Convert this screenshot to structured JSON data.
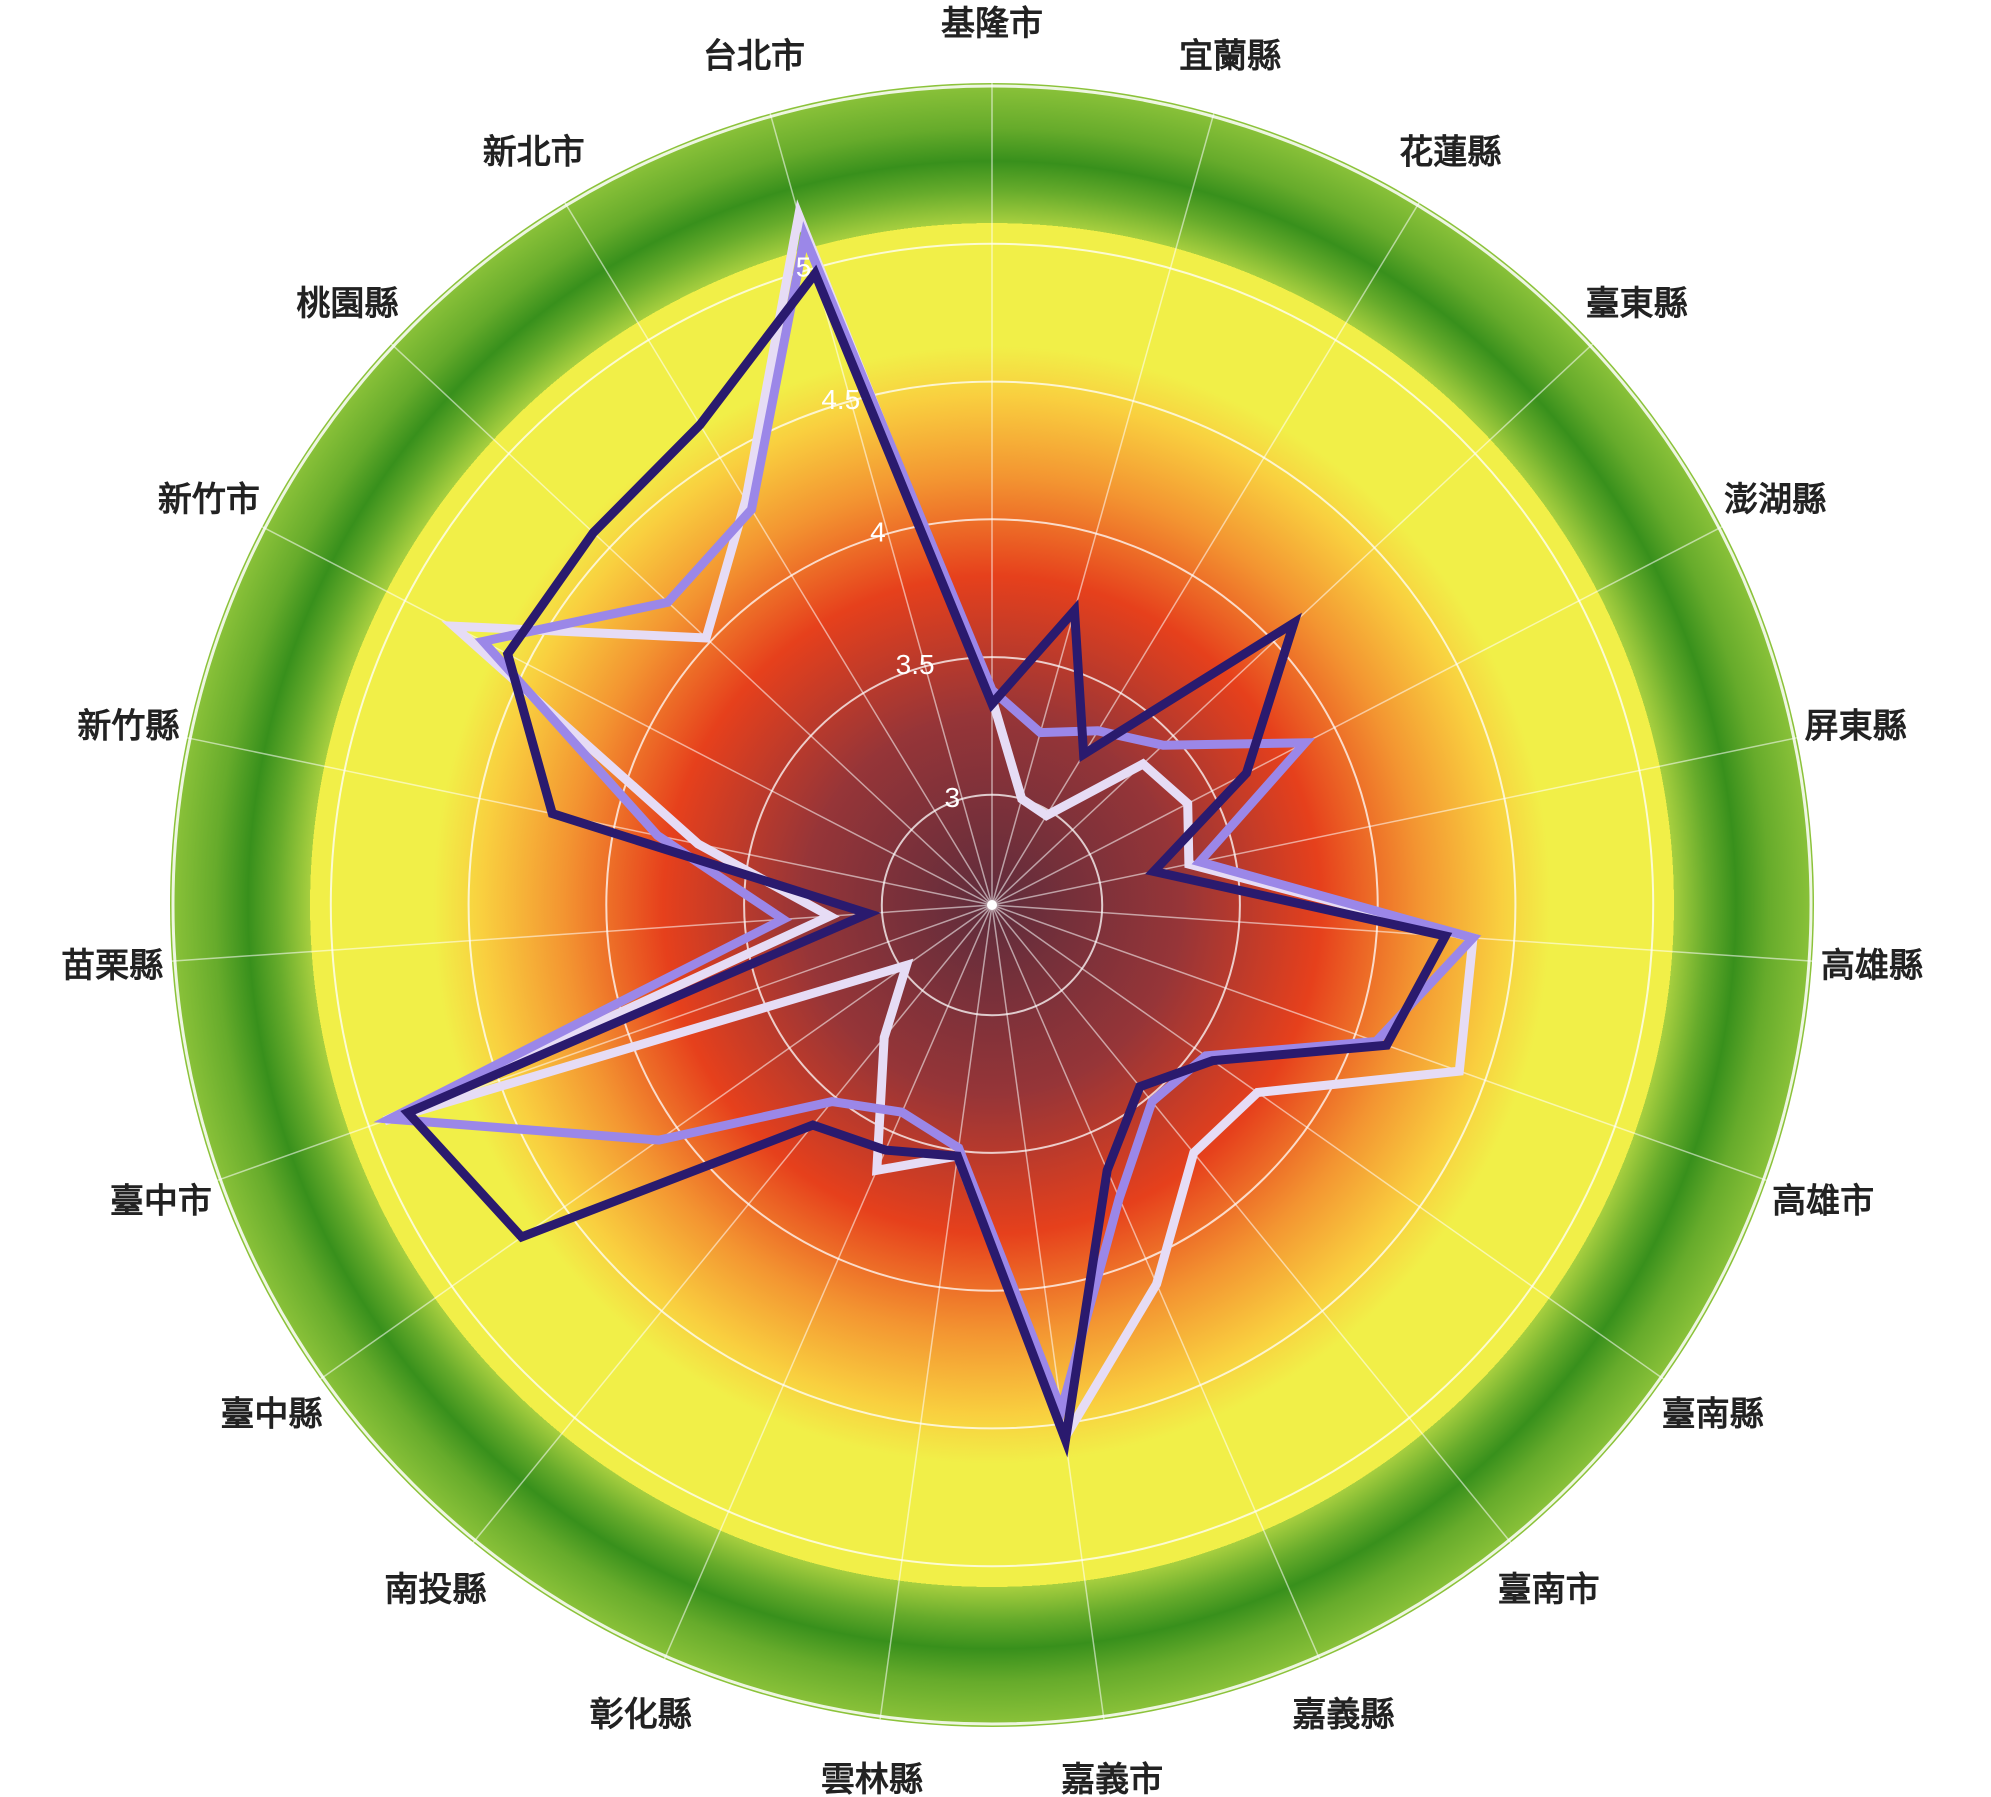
{
  "chart_data": {
    "type": "radar",
    "categories": [
      "基隆市",
      "宜蘭縣",
      "花蓮縣",
      "臺東縣",
      "澎湖縣",
      "屏東縣",
      "高雄縣",
      "高雄市",
      "臺南縣",
      "臺南市",
      "嘉義縣",
      "嘉義市",
      "雲林縣",
      "彰化縣",
      "南投縣",
      "臺中縣",
      "臺中市",
      "苗栗縣",
      "新竹縣",
      "新竹市",
      "桃園縣",
      "新北市",
      "台北市"
    ],
    "radial_ticks": [
      "3",
      "3.5",
      "4",
      "4.5",
      "5"
    ],
    "rlim": [
      2.6,
      5.5
    ],
    "grid": true,
    "series": [
      {
        "color": "#e6dcf5",
        "values": [
          3.35,
          3.0,
          2.98,
          3.35,
          3.4,
          3.33,
          4.35,
          4.4,
          3.78,
          3.76,
          4.1,
          4.55,
          3.52,
          3.65,
          3.22,
          2.98,
          4.94,
          3.19,
          3.69,
          4.8,
          4.02,
          4.32,
          5.2
        ]
      },
      {
        "color": "#9b87e8",
        "values": [
          3.38,
          3.25,
          3.34,
          3.45,
          3.88,
          3.37,
          4.35,
          4.08,
          3.55,
          3.52,
          3.76,
          4.45,
          3.49,
          3.42,
          3.52,
          4.08,
          4.92,
          3.36,
          3.84,
          4.68,
          4.21,
          4.28,
          5.12
        ]
      },
      {
        "color": "#2a1a6e",
        "values": [
          3.33,
          3.71,
          3.24,
          4.1,
          3.64,
          3.2,
          4.25,
          4.12,
          3.58,
          3.45,
          3.65,
          4.56,
          3.52,
          3.57,
          3.63,
          4.69,
          4.85,
          3.05,
          4.23,
          4.58,
          4.58,
          4.64,
          4.98
        ]
      }
    ]
  }
}
